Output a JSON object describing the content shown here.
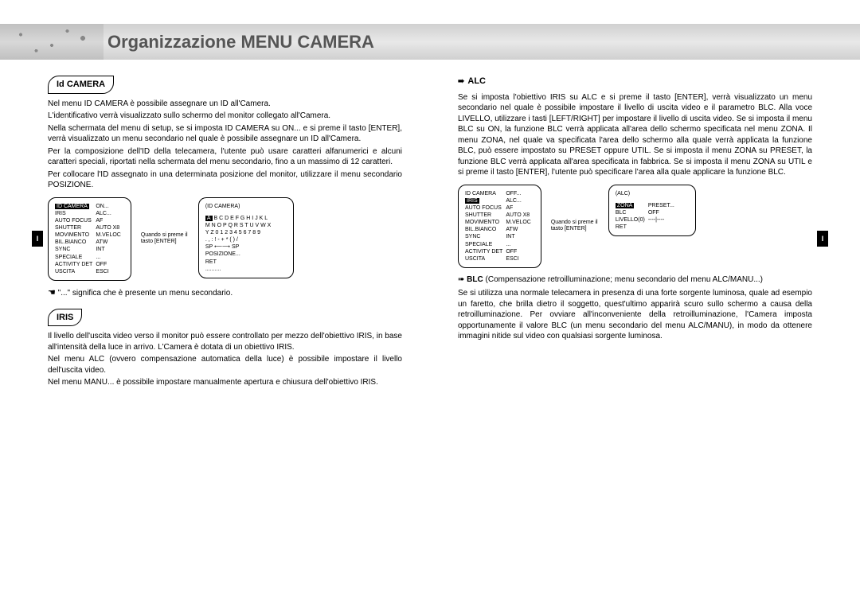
{
  "header": {
    "title": "Organizzazione MENU CAMERA"
  },
  "side_tab": "I",
  "left_column": {
    "section_idcamera": {
      "heading": "Id CAMERA",
      "paragraphs": [
        "Nel menu ID CAMERA è possibile assegnare un ID all'Camera.",
        "L'identificativo verrà visualizzato sullo schermo del monitor collegato all'Camera.",
        "Nella schermata del menu di setup, se si imposta ID CAMERA su ON... e si preme il tasto [ENTER], verrà visualizzato un menu secondario nel quale è possibile assegnare un ID all'Camera.",
        "Per la composizione dell'ID della telecamera, l'utente può usare caratteri alfanumerici e alcuni caratteri speciali, riportati nella schermata del menu secondario, fino a un massimo di 12 caratteri.",
        "Per collocare l'ID assegnato in una determinata posizione del monitor, utilizzare il menu secondario POSIZIONE."
      ],
      "menu_left": {
        "rows": [
          [
            "ID CAMERA",
            "ON..."
          ],
          [
            "IRIS",
            "ALC..."
          ],
          [
            "AUTO FOCUS",
            "AF"
          ],
          [
            "SHUTTER",
            "AUTO X8"
          ],
          [
            "MOVIMENTO",
            "M.VELOC"
          ],
          [
            "BIL.BIANCO",
            "ATW"
          ],
          [
            "SYNC",
            "INT"
          ],
          [
            "SPECIALE",
            "..."
          ],
          [
            "ACTIVITY DET",
            "OFF"
          ],
          [
            "USCITA",
            "ESCI"
          ]
        ],
        "highlight_row": 0,
        "highlight_col": 0
      },
      "arrow_note": "Quando si preme il tasto [ENTER]",
      "menu_right": {
        "title": "(ID CAMERA)",
        "lines": [
          "A B C D E F G H I J K L",
          "M N O P Q R S T U V W X",
          "Y Z  0 1 2 3 4 5 6 7 8 9",
          ". , : ! - + * ( ) /",
          "SP  ⟵⟶ SP",
          "POSIZIONE...",
          "RET",
          ".........."
        ],
        "highlight_char": "A"
      },
      "footnote_icon": "☚",
      "footnote": "\"...\" significa che è presente un menu secondario."
    },
    "section_iris": {
      "heading": "IRIS",
      "paragraphs": [
        "Il livello dell'uscita video verso il monitor può essere controllato per mezzo dell'obiettivo IRIS, in base all'intensità della luce in arrivo. L'Camera è dotata di un obiettivo IRIS.",
        "Nel menu ALC (ovvero compensazione automatica della luce) è possibile impostare il livello dell'uscita video.",
        "Nel menu MANU... è possibile impostare manualmente apertura e chiusura dell'obiettivo IRIS."
      ]
    }
  },
  "right_column": {
    "section_alc": {
      "arrow": "➠",
      "heading": "ALC",
      "paragraphs": [
        "Se si imposta l'obiettivo IRIS su ALC e si preme il tasto [ENTER], verrà visualizzato un menu secondario nel quale è possibile impostare il livello di uscita video e il parametro BLC. Alla voce LIVELLO, utilizzare i tasti [LEFT/RIGHT] per impostare il livello di uscita video. Se si imposta il menu BLC su ON, la funzione BLC verrà applicata all'area dello schermo specificata nel menu ZONA.  Il menu ZONA, nel quale va specificata l'area dello schermo alla quale verrà applicata la funzione BLC, può essere impostato su PRESET oppure UTIL. Se si imposta il menu ZONA su PRESET, la funzione BLC verrà applicata all'area specificata in fabbrica. Se si imposta il menu ZONA su UTIL e si preme il tasto [ENTER], l'utente può specificare l'area alla quale applicare la funzione BLC."
      ],
      "menu_left": {
        "rows": [
          [
            "ID CAMERA",
            "OFF..."
          ],
          [
            "IRIS",
            "ALC..."
          ],
          [
            "AUTO FOCUS",
            "AF"
          ],
          [
            "SHUTTER",
            "AUTO X8"
          ],
          [
            "MOVIMENTO",
            "M.VELOC"
          ],
          [
            "BIL.BIANCO",
            "ATW"
          ],
          [
            "SYNC",
            "INT"
          ],
          [
            "SPECIALE",
            "..."
          ],
          [
            "ACTIVITY DET",
            "OFF"
          ],
          [
            "USCITA",
            "ESCI"
          ]
        ],
        "highlight_row": 1,
        "highlight_col": 0
      },
      "arrow_note": "Quando si preme il tasto [ENTER]",
      "menu_right": {
        "title": "(ALC)",
        "rows": [
          [
            "ZONA",
            "PRESET..."
          ],
          [
            "BLC",
            "OFF"
          ],
          [
            "LIVELLO(0)",
            "----|----"
          ],
          [
            "RET",
            ""
          ]
        ],
        "highlight_row": 0,
        "highlight_col": 0
      }
    },
    "section_blc": {
      "arrow": "➠",
      "heading_bold": "BLC",
      "heading_rest": " (Compensazione retroilluminazione; menu secondario del menu ALC/MANU...)",
      "paragraphs": [
        "Se si utilizza una normale telecamera in presenza di una forte sorgente luminosa, quale ad esempio un faretto, che brilla dietro il soggetto, quest'ultimo apparirà scuro sullo schermo a causa della retroilluminazione. Per ovviare all'inconveniente della retroilluminazione, l'Camera imposta opportunamente il valore BLC (un menu secondario del menu ALC/MANU), in modo da ottenere immagini nitide sul video con qualsiasi sorgente luminosa."
      ]
    }
  }
}
